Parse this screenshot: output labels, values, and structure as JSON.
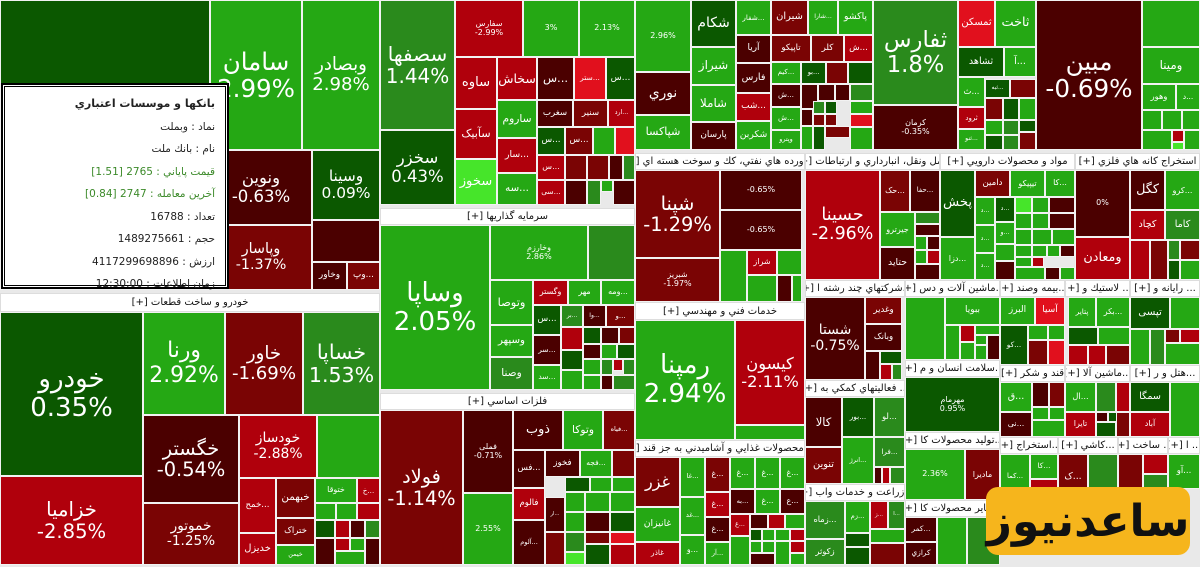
{
  "palette": {
    "dg": "#0b5800",
    "g": "#2a8a1c",
    "lg": "#25a814",
    "bg": "#46e52a",
    "dr": "#4b0000",
    "r": "#7a0404",
    "rr": "#b0000c",
    "br": "#e1101d"
  },
  "sectors": [
    {
      "title": "خودرو و ساخت قطعات [+]"
    },
    {
      "title": "سرمايه گذاريها [+]"
    },
    {
      "title": "فلزات اساسي [+]"
    },
    {
      "title": "فراورده هاي نفتي، كك و سوخت هسته اي [+]"
    },
    {
      "title": "حمل ونقل، انبارداري و ارتباطات [+]"
    },
    {
      "title": "مواد و محصولات دارويي [+]"
    },
    {
      "title": "استخراج كانه هاي فلزي [+]"
    },
    {
      "title": "...شركتهاي چند رشته ا [+]"
    },
    {
      "title": "...ماشين آلات و دس [+]"
    },
    {
      "title": "...بيمه وصند [+]"
    },
    {
      "title": "... لاستيك و [+]"
    },
    {
      "title": "... رايانه و [+]"
    },
    {
      "title": "...سلامت انسان و م [+]"
    },
    {
      "title": "قند و شكر [+]"
    },
    {
      "title": "...ماشين آلا [+]"
    },
    {
      "title": "...هتل و ر [+]"
    },
    {
      "title": "... فعاليتهاي كمكي به [+]"
    },
    {
      "title": "...توليد محصولات كا [+]"
    },
    {
      "title": "...استخراج [+]"
    },
    {
      "title": "...كاشي [+]"
    },
    {
      "title": "... ساخت [+]"
    },
    {
      "title": "... ا [+]"
    },
    {
      "title": "...زراعت و خدمات واب [+]"
    },
    {
      "title": "...ساير محصولات كا [+]"
    },
    {
      "title": "... محصولات غذايي و آشاميدني به جز قند [+]"
    },
    {
      "title": "خدمات فني و مهندسي [+]"
    }
  ],
  "tiles": [
    {
      "sym": "وبملت",
      "c": "dg"
    },
    {
      "sym": "سامان",
      "pct": "2.99%",
      "c": "lg"
    },
    {
      "sym": "وبصادر",
      "pct": "2.98%",
      "c": "lg"
    },
    {
      "sym": "ونوین",
      "pct": "-0.63%",
      "c": "dr"
    },
    {
      "sym": "وسینا",
      "pct": "0.09%",
      "c": "dg"
    },
    {
      "c": "dr"
    },
    {
      "sym": "وپاسار",
      "pct": "-1.37%",
      "c": "r"
    },
    {
      "sym": "وخاور",
      "c": "dr"
    },
    {
      "sym": "...وپ",
      "c": "r"
    },
    {
      "sym": "خودرو",
      "pct": "0.35%",
      "c": "dg"
    },
    {
      "sym": "خزامیا",
      "pct": "-2.85%",
      "c": "rr"
    },
    {
      "sym": "ورنا",
      "pct": "2.92%",
      "c": "lg"
    },
    {
      "sym": "خاور",
      "pct": "-1.69%",
      "c": "r"
    },
    {
      "sym": "خساپا",
      "pct": "1.53%",
      "c": "g"
    },
    {
      "sym": "خگستر",
      "pct": "-0.54%",
      "c": "dr"
    },
    {
      "sym": "خموتور",
      "pct": "-1.25%",
      "c": "r"
    },
    {
      "sym": "خودساز",
      "pct": "-2.88%",
      "c": "rr"
    },
    {
      "c": "lg"
    },
    {
      "sym": "...خمح",
      "c": "rr"
    },
    {
      "sym": "خبهمن",
      "c": "r"
    },
    {
      "sym": "ختوقا",
      "c": "lg"
    },
    {
      "sym": "...خ",
      "c": "rr"
    },
    {
      "sym": "ختراک",
      "c": "r"
    },
    {
      "sym": "خدیزل",
      "c": "rr"
    },
    {
      "sym": "خیمن",
      "c": "lg"
    },
    {
      "c": "lg"
    },
    {
      "c": "lg"
    },
    {
      "c": "rr"
    },
    {
      "c": "dg"
    },
    {
      "c": "rr"
    },
    {
      "c": "dr"
    },
    {
      "c": "g"
    },
    {
      "c": "dr"
    },
    {
      "c": "rr"
    },
    {
      "c": "lg"
    },
    {
      "c": "dr"
    },
    {
      "c": "lg"
    },
    {
      "sym": "سصفها",
      "pct": "1.44%",
      "c": "g"
    },
    {
      "sym": "سخزر",
      "pct": "0.43%",
      "c": "dg"
    },
    {
      "sym": "سفارس",
      "pct": "-2.99%",
      "c": "rr"
    },
    {
      "pct": "3%",
      "c": "lg"
    },
    {
      "pct": "2.13%",
      "c": "lg"
    },
    {
      "sym": "ساوه",
      "c": "rr"
    },
    {
      "sym": "سآبیک",
      "c": "rr"
    },
    {
      "sym": "سخوز",
      "c": "bg"
    },
    {
      "sym": "سخاش",
      "c": "rr"
    },
    {
      "sym": "ساروم",
      "c": "lg"
    },
    {
      "sym": "...سار",
      "c": "rr"
    },
    {
      "sym": "...سه",
      "c": "lg"
    },
    {
      "sym": "...س",
      "c": "dr"
    },
    {
      "sym": "...ستر",
      "c": "br"
    },
    {
      "sym": "...س",
      "c": "dg"
    },
    {
      "sym": "سغرب",
      "c": "dr"
    },
    {
      "sym": "سنیر",
      "c": "r"
    },
    {
      "sym": "...ارد",
      "c": "rr"
    },
    {
      "sym": "...س",
      "c": "dg"
    },
    {
      "sym": "...س",
      "c": "r"
    },
    {
      "c": "lg"
    },
    {
      "c": "br"
    },
    {
      "sym": "...س",
      "c": "rr"
    },
    {
      "sym": "...سی",
      "c": "rr"
    },
    {
      "c": "r"
    },
    {
      "c": "r"
    },
    {
      "c": "dr"
    },
    {
      "c": "g"
    },
    {
      "c": "dr"
    },
    {
      "c": "g"
    },
    {
      "c": "lg"
    },
    {
      "c": "dr"
    },
    {
      "sym": "وساپا",
      "pct": "2.05%",
      "c": "lg"
    },
    {
      "sym": "وخارزم",
      "pct": "2.86%",
      "c": "lg"
    },
    {
      "c": "g"
    },
    {
      "sym": "وتوصا",
      "c": "lg"
    },
    {
      "sym": "وسپهر",
      "c": "lg"
    },
    {
      "sym": "وصنا",
      "c": "g"
    },
    {
      "sym": "وگستر",
      "c": "rr"
    },
    {
      "sym": "مهر",
      "c": "lg"
    },
    {
      "sym": "...ومه",
      "c": "lg"
    },
    {
      "sym": "...س",
      "c": "dg"
    },
    {
      "sym": "...بر",
      "c": "g"
    },
    {
      "sym": "...وا",
      "c": "dr"
    },
    {
      "sym": "...و",
      "c": "r"
    },
    {
      "sym": "...سر",
      "c": "dr"
    },
    {
      "sym": "...سد",
      "c": "lg"
    },
    {
      "c": "rr"
    },
    {
      "c": "dg"
    },
    {
      "c": "dr"
    },
    {
      "c": "r"
    },
    {
      "c": "dg"
    },
    {
      "c": "dr"
    },
    {
      "c": "lg"
    },
    {
      "c": "dg"
    },
    {
      "c": "lg"
    },
    {
      "c": "lg"
    },
    {
      "c": "g"
    },
    {
      "c": "rr"
    },
    {
      "c": "g"
    },
    {
      "c": "lg"
    },
    {
      "c": "dr"
    },
    {
      "c": "g"
    },
    {
      "sym": "فولاد",
      "pct": "-1.14%",
      "c": "r"
    },
    {
      "sym": "فملی",
      "pct": "-0.71%",
      "c": "dr"
    },
    {
      "pct": "2.55%",
      "c": "lg"
    },
    {
      "sym": "ذوب",
      "c": "dr"
    },
    {
      "sym": "وتوکا",
      "c": "lg"
    },
    {
      "sym": "...فیاه",
      "c": "r"
    },
    {
      "sym": "...فس",
      "c": "dr"
    },
    {
      "sym": "فخوز",
      "c": "dr"
    },
    {
      "sym": "...فجه",
      "c": "lg"
    },
    {
      "c": "r"
    },
    {
      "sym": "فالوم",
      "c": "rr"
    },
    {
      "sym": "...آلوم",
      "c": "dr"
    },
    {
      "sym": "...ار",
      "c": "dr"
    },
    {
      "c": "dg"
    },
    {
      "c": "lg"
    },
    {
      "c": "lg"
    },
    {
      "c": "r"
    },
    {
      "c": "lg"
    },
    {
      "c": "lg"
    },
    {
      "c": "lg"
    },
    {
      "c": "lg"
    },
    {
      "c": "dr"
    },
    {
      "c": "dg"
    },
    {
      "c": "g"
    },
    {
      "c": "r"
    },
    {
      "c": "br"
    },
    {
      "c": "bg"
    },
    {
      "c": "dg"
    },
    {
      "c": "rr"
    },
    {
      "pct": "2.96%",
      "c": "lg"
    },
    {
      "sym": "نوري",
      "c": "dr"
    },
    {
      "sym": "شپاکسا",
      "c": "lg"
    },
    {
      "sym": "شکام",
      "c": "dg"
    },
    {
      "sym": "شیراز",
      "c": "lg"
    },
    {
      "sym": "شاملا",
      "c": "lg"
    },
    {
      "sym": "پارسان",
      "c": "dr"
    },
    {
      "sym": "...شفار",
      "c": "lg"
    },
    {
      "sym": "آریا",
      "c": "dr"
    },
    {
      "sym": "فارس",
      "c": "dr"
    },
    {
      "sym": "...شب",
      "c": "rr"
    },
    {
      "sym": "شکربن",
      "c": "lg"
    },
    {
      "sym": "شیران",
      "c": "r"
    },
    {
      "sym": "...شارا",
      "c": "lg"
    },
    {
      "sym": "پاکشو",
      "c": "lg"
    },
    {
      "sym": "تاپیکو",
      "c": "r"
    },
    {
      "sym": "کلر",
      "c": "r"
    },
    {
      "sym": "...ش",
      "c": "rr"
    },
    {
      "sym": "...کیم",
      "c": "lg"
    },
    {
      "sym": "...بو",
      "c": "dg"
    },
    {
      "c": "r"
    },
    {
      "c": "dg"
    },
    {
      "sym": "...ش",
      "c": "dr"
    },
    {
      "sym": "...ش",
      "c": "lg"
    },
    {
      "sym": "وپترو",
      "c": "lg"
    },
    {
      "c": "dr"
    },
    {
      "c": "dr"
    },
    {
      "c": "dr"
    },
    {
      "c": "g"
    },
    {
      "c": "dr"
    },
    {
      "c": "g"
    },
    {
      "c": "dg"
    },
    {
      "c": "lg"
    },
    {
      "c": "lg"
    },
    {
      "c": "r"
    },
    {
      "c": "r"
    },
    {
      "c": "br"
    },
    {
      "c": "dg"
    },
    {
      "c": "r"
    },
    {
      "c": "lg"
    },
    {
      "sym": "ثفارس",
      "pct": "1.8%",
      "c": "g"
    },
    {
      "sym": "کرمان",
      "pct": "-0.35%",
      "c": "dr"
    },
    {
      "sym": "ثمسکن",
      "c": "br"
    },
    {
      "sym": "ثاخت",
      "c": "lg"
    },
    {
      "sym": "ثشاهد",
      "c": "dg"
    },
    {
      "sym": "...آ",
      "c": "lg"
    },
    {
      "sym": "...ث",
      "c": "lg"
    },
    {
      "sym": "...ثبه",
      "c": "dg"
    },
    {
      "c": "r"
    },
    {
      "sym": "ثرود",
      "c": "rr"
    },
    {
      "sym": "...ثنو",
      "c": "lg"
    },
    {
      "c": "r"
    },
    {
      "c": "dg"
    },
    {
      "c": "lg"
    },
    {
      "c": "lg"
    },
    {
      "c": "g"
    },
    {
      "c": "dg"
    },
    {
      "c": "dg"
    },
    {
      "c": "g"
    },
    {
      "c": "r"
    },
    {
      "sym": "مبین",
      "pct": "-0.69%",
      "c": "dr"
    },
    {
      "c": "lg"
    },
    {
      "sym": "ومینا",
      "c": "lg"
    },
    {
      "sym": "وهور",
      "c": "lg"
    },
    {
      "sym": "...د",
      "c": "lg"
    },
    {
      "c": "lg"
    },
    {
      "c": "lg"
    },
    {
      "c": "lg"
    },
    {
      "c": "lg"
    },
    {
      "c": "rr"
    },
    {
      "c": "bg"
    },
    {
      "c": "lg"
    },
    {
      "sym": "شپنا",
      "pct": "-1.29%",
      "c": "r"
    },
    {
      "sym": "شبریز",
      "pct": "-1.97%",
      "c": "r"
    },
    {
      "pct": "-0.65%",
      "c": "dr"
    },
    {
      "pct": "-0.65%",
      "c": "dr"
    },
    {
      "c": "lg"
    },
    {
      "sym": "شراز",
      "c": "rr"
    },
    {
      "c": "lg"
    },
    {
      "c": "lg"
    },
    {
      "c": "dr"
    },
    {
      "c": "lg"
    },
    {
      "sym": "حسینا",
      "pct": "-2.96%",
      "c": "rr"
    },
    {
      "sym": "...حک",
      "c": "r"
    },
    {
      "sym": "...حفا",
      "c": "dr"
    },
    {
      "sym": "جیرترو",
      "c": "lg"
    },
    {
      "sym": "حتاید",
      "c": "dr"
    },
    {
      "c": "g"
    },
    {
      "c": "dr"
    },
    {
      "c": "lg"
    },
    {
      "c": "dr"
    },
    {
      "c": "lg"
    },
    {
      "c": "rr"
    },
    {
      "c": "dr"
    },
    {
      "sym": "پخش",
      "c": "dg"
    },
    {
      "sym": "دامین",
      "c": "r"
    },
    {
      "sym": "تیپیکو",
      "c": "lg"
    },
    {
      "sym": "...کا",
      "c": "lg"
    },
    {
      "sym": "...دزا",
      "c": "lg"
    },
    {
      "sym": "...د",
      "c": "lg"
    },
    {
      "sym": "...د",
      "c": "dg"
    },
    {
      "sym": "...د",
      "c": "lg"
    },
    {
      "sym": "...و",
      "c": "lg"
    },
    {
      "sym": "...د",
      "c": "lg"
    },
    {
      "c": "lg"
    },
    {
      "c": "dr"
    },
    {
      "c": "bg"
    },
    {
      "c": "lg"
    },
    {
      "c": "dr"
    },
    {
      "c": "lg"
    },
    {
      "c": "lg"
    },
    {
      "c": "dr"
    },
    {
      "c": "lg"
    },
    {
      "c": "lg"
    },
    {
      "c": "lg"
    },
    {
      "c": "lg"
    },
    {
      "c": "lg"
    },
    {
      "c": "lg"
    },
    {
      "c": "lg"
    },
    {
      "c": "rr"
    },
    {
      "c": "dr"
    },
    {
      "c": "lg"
    },
    {
      "c": "dr"
    },
    {
      "c": "lg"
    },
    {
      "pct": "0%",
      "c": "dr"
    },
    {
      "sym": "کگل",
      "c": "dr"
    },
    {
      "sym": "...کرو",
      "c": "lg"
    },
    {
      "sym": "کچاد",
      "c": "rr"
    },
    {
      "sym": "کاما",
      "c": "g"
    },
    {
      "sym": "ومعادن",
      "c": "rr"
    },
    {
      "c": "rr"
    },
    {
      "c": "r"
    },
    {
      "c": "g"
    },
    {
      "c": "r"
    },
    {
      "c": "dg"
    },
    {
      "c": "lg"
    },
    {
      "sym": "شستا",
      "pct": "-0.75%",
      "c": "dr"
    },
    {
      "sym": "وغدیر",
      "c": "r"
    },
    {
      "sym": "وبانک",
      "c": "dr"
    },
    {
      "c": "dr"
    },
    {
      "c": "dg"
    },
    {
      "c": "rr"
    },
    {
      "c": "g"
    },
    {
      "c": "lg"
    },
    {
      "sym": "ببویا",
      "c": "lg"
    },
    {
      "c": "lg"
    },
    {
      "c": "rr"
    },
    {
      "c": "lg"
    },
    {
      "c": "lg"
    },
    {
      "c": "dr"
    },
    {
      "c": "lg"
    },
    {
      "c": "lg"
    },
    {
      "sym": "البرز",
      "c": "lg"
    },
    {
      "sym": "آسیا",
      "c": "br"
    },
    {
      "sym": "...کو",
      "c": "dg"
    },
    {
      "c": "lg"
    },
    {
      "c": "lg"
    },
    {
      "c": "r"
    },
    {
      "c": "br"
    },
    {
      "sym": "...بکر",
      "c": "lg"
    },
    {
      "sym": "پتایر",
      "c": "lg"
    },
    {
      "c": "dg"
    },
    {
      "c": "lg"
    },
    {
      "c": "rr"
    },
    {
      "c": "rr"
    },
    {
      "c": "r"
    },
    {
      "sym": "تپسی",
      "c": "dg"
    },
    {
      "c": "lg"
    },
    {
      "c": "lg"
    },
    {
      "c": "g"
    },
    {
      "c": "r"
    },
    {
      "c": "rr"
    },
    {
      "c": "lg"
    },
    {
      "sym": "مهرمام",
      "pct": "0.95%",
      "c": "dg"
    },
    {
      "sym": "...ق",
      "c": "lg"
    },
    {
      "sym": "...نی",
      "c": "dr"
    },
    {
      "c": "dr"
    },
    {
      "c": "r"
    },
    {
      "c": "lg"
    },
    {
      "c": "lg"
    },
    {
      "c": "lg"
    },
    {
      "sym": "...ال",
      "c": "lg"
    },
    {
      "sym": "تایرا",
      "c": "rr"
    },
    {
      "c": "g"
    },
    {
      "c": "rr"
    },
    {
      "c": "dr"
    },
    {
      "c": "dg"
    },
    {
      "c": "dg"
    },
    {
      "c": "r"
    },
    {
      "sym": "سمگا",
      "c": "dg"
    },
    {
      "sym": "آباد",
      "c": "rr"
    },
    {
      "c": "lg"
    },
    {
      "sym": "کالا",
      "c": "dr"
    },
    {
      "sym": "...بور",
      "c": "dg"
    },
    {
      "sym": "...لو",
      "c": "g"
    },
    {
      "sym": "تنوین",
      "c": "r"
    },
    {
      "sym": "...انرژ",
      "c": "lg"
    },
    {
      "sym": "...فرا",
      "c": "g"
    },
    {
      "c": "dr"
    },
    {
      "c": "rr"
    },
    {
      "c": "g"
    },
    {
      "pct": "2.36%",
      "c": "lg"
    },
    {
      "sym": "مادیرا",
      "c": "r"
    },
    {
      "sym": "...کا",
      "c": "lg"
    },
    {
      "sym": "...کما",
      "c": "lg"
    },
    {
      "c": "rr"
    },
    {
      "sym": "...ک",
      "c": "r"
    },
    {
      "c": "g"
    },
    {
      "c": "r"
    },
    {
      "c": "rr"
    },
    {
      "c": "g"
    },
    {
      "sym": "...آو",
      "c": "lg"
    },
    {
      "sym": "...زماه",
      "c": "g"
    },
    {
      "sym": "زکوثر",
      "c": "g"
    },
    {
      "sym": "...زم",
      "c": "lg"
    },
    {
      "sym": "...ز",
      "c": "rr"
    },
    {
      "sym": "...ا",
      "c": "g"
    },
    {
      "c": "dg"
    },
    {
      "c": "lg"
    },
    {
      "c": "dg"
    },
    {
      "c": "r"
    },
    {
      "sym": "...کمر",
      "c": "dr"
    },
    {
      "sym": "کرازي",
      "c": "dr"
    },
    {
      "c": "lg"
    },
    {
      "c": "g"
    },
    {
      "sym": "غزر",
      "c": "r"
    },
    {
      "sym": "غانیزان",
      "c": "lg"
    },
    {
      "sym": "غاذر",
      "c": "rr"
    },
    {
      "sym": "...غا",
      "c": "lg"
    },
    {
      "sym": "...غد",
      "c": "lg"
    },
    {
      "sym": "...و",
      "c": "lg"
    },
    {
      "sym": "...غ",
      "c": "r"
    },
    {
      "sym": "...غ",
      "c": "rr"
    },
    {
      "sym": "...غ",
      "c": "dr"
    },
    {
      "sym": "...آر",
      "c": "lg"
    },
    {
      "sym": "...غ",
      "c": "lg"
    },
    {
      "sym": "...غ",
      "c": "lg"
    },
    {
      "sym": "...غ",
      "c": "lg"
    },
    {
      "sym": "...به",
      "c": "dr"
    },
    {
      "sym": "...غ",
      "c": "lg"
    },
    {
      "sym": "...ع",
      "c": "dr"
    },
    {
      "sym": "...غ",
      "c": "rr"
    },
    {
      "c": "dr"
    },
    {
      "c": "rr"
    },
    {
      "c": "lg"
    },
    {
      "c": "lg"
    },
    {
      "c": "dg"
    },
    {
      "c": "lg"
    },
    {
      "c": "lg"
    },
    {
      "c": "rr"
    },
    {
      "c": "lg"
    },
    {
      "c": "lg"
    },
    {
      "c": "dr"
    },
    {
      "c": "lg"
    },
    {
      "c": "rr"
    },
    {
      "c": "lg"
    },
    {
      "sym": "رمپنا",
      "pct": "2.94%",
      "c": "lg"
    },
    {
      "sym": "کیسون",
      "pct": "-2.11%",
      "c": "rr"
    },
    {
      "c": "lg"
    }
  ],
  "tooltip": {
    "sector": "بانكها و موسسات اعتباري",
    "symbol": "نماد : وبملت",
    "name": "نام : بانك ملت",
    "close_price": "قيمت پاياني : 2765 [1.51]",
    "last_trade": "آخرين معامله : 2747 [0.84]",
    "count": "تعداد : 16788",
    "volume": "حجم : 1489275661",
    "value": "ارزش : 4117299698896",
    "time": "زمان اطلاعات : 12:30:00"
  },
  "logo": {
    "text": "ساعدنیوز"
  }
}
